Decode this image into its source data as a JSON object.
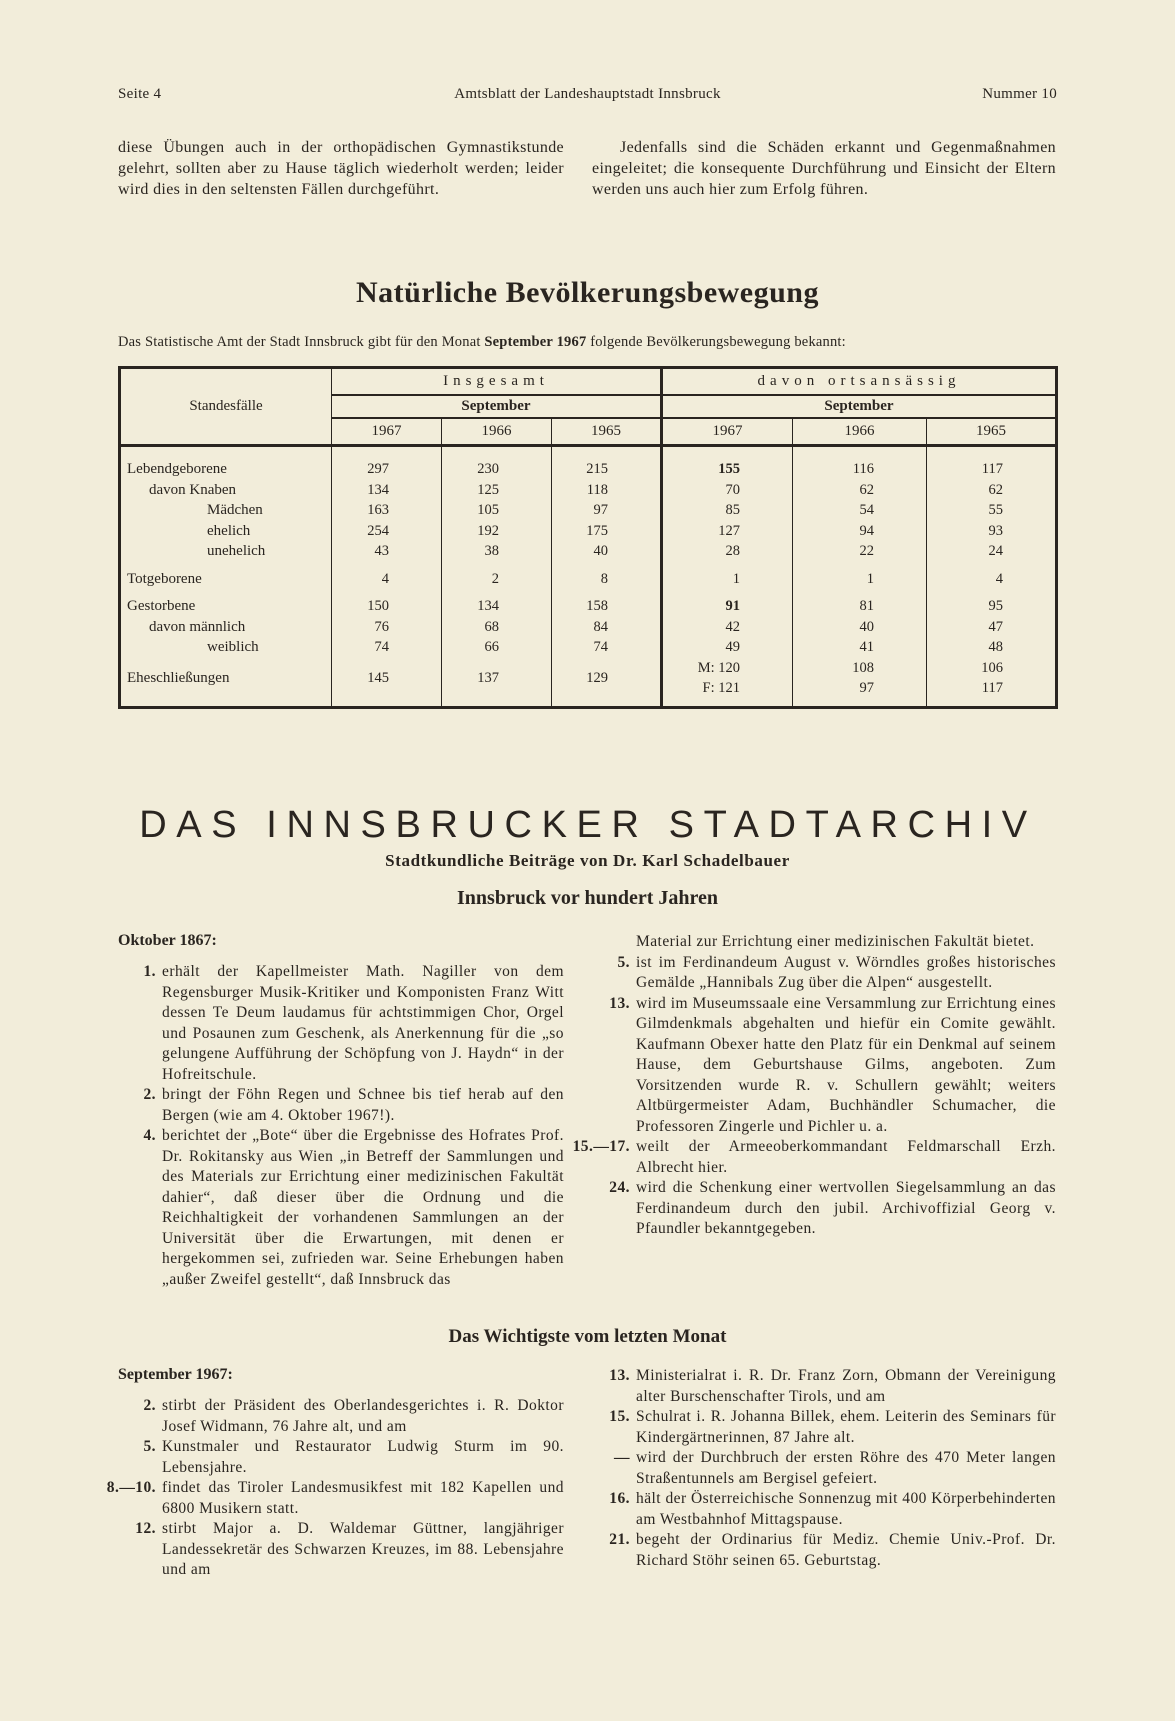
{
  "header": {
    "page": "Seite 4",
    "publication": "Amtsblatt der Landeshauptstadt Innsbruck",
    "issue": "Nummer 10"
  },
  "top": {
    "left": "diese Übungen auch in der orthopädischen Gymnastikstunde gelehrt, sollten aber zu Hause täglich wiederholt werden; leider wird dies in den seltensten Fällen durchgeführt.",
    "right": "Jedenfalls sind die Schäden erkannt und Gegenmaßnahmen eingeleitet; die konsequente Durchführung und Einsicht der Eltern werden uns auch hier zum Erfolg führen."
  },
  "stats": {
    "title": "Natürliche Bevölkerungsbewegung",
    "intro_pre": "Das Statistische Amt der Stadt Innsbruck gibt für den Monat ",
    "intro_month": "September 1967",
    "intro_post": " folgende Bevölkerungsbewegung bekannt:",
    "col_label": "Standesfälle",
    "group1": "Insgesamt",
    "group2": "davon ortsansässig",
    "month": "September",
    "years": [
      "1967",
      "1966",
      "1965",
      "1967",
      "1966",
      "1965"
    ],
    "rows": [
      {
        "label": "Lebendgeborene",
        "values": [
          "297",
          "230",
          "215",
          "155",
          "116",
          "117"
        ]
      },
      {
        "label": "davon Knaben",
        "values": [
          "134",
          "125",
          "118",
          "70",
          "62",
          "62"
        ]
      },
      {
        "label": "Mädchen",
        "values": [
          "163",
          "105",
          "97",
          "85",
          "54",
          "55"
        ]
      },
      {
        "label": "ehelich",
        "values": [
          "254",
          "192",
          "175",
          "127",
          "94",
          "93"
        ]
      },
      {
        "label": "unehelich",
        "values": [
          "43",
          "38",
          "40",
          "28",
          "22",
          "24"
        ]
      },
      {
        "label": "Totgeborene",
        "values": [
          "4",
          "2",
          "8",
          "1",
          "1",
          "4"
        ]
      },
      {
        "label": "Gestorbene",
        "values": [
          "150",
          "134",
          "158",
          "91",
          "81",
          "95"
        ]
      },
      {
        "label": "davon männlich",
        "values": [
          "76",
          "68",
          "84",
          "42",
          "40",
          "47"
        ]
      },
      {
        "label": "weiblich",
        "values": [
          "74",
          "66",
          "74",
          "49",
          "41",
          "48"
        ]
      }
    ],
    "marriages": {
      "label": "Eheschließungen",
      "values": [
        "145",
        "137",
        "129"
      ],
      "m": [
        "M: 120",
        "108",
        "106"
      ],
      "f": [
        "F: 121",
        "97",
        "117"
      ]
    }
  },
  "archive": {
    "title": "DAS INNSBRUCKER STADTARCHIV",
    "byline": "Stadtkundliche Beiträge von Dr. Karl Schadelbauer",
    "heading": "Innsbruck vor hundert Jahren",
    "month": "Oktober 1867:",
    "left_items": [
      {
        "n": "1.",
        "text": "erhält der Kapellmeister Math. Nagiller von dem Regensburger Musik-Kritiker und Komponisten Franz Witt dessen Te Deum laudamus für achtstimmigen Chor, Orgel und Posaunen zum Geschenk, als Anerkennung für die „so gelungene Aufführung der Schöpfung von J. Haydn“ in der Hofreitschule."
      },
      {
        "n": "2.",
        "text": "bringt der Föhn Regen und Schnee bis tief herab auf den Bergen (wie am 4. Oktober 1967!)."
      },
      {
        "n": "4.",
        "text": "berichtet der „Bote“ über die Ergebnisse des Hofrates Prof. Dr. Rokitansky aus Wien „in Betreff der Sammlungen und des Materials zur Errichtung einer medizinischen Fakultät dahier“, daß dieser über die Ordnung und die Reichhaltigkeit der vorhandenen Sammlungen an der Universität über die Erwartungen, mit denen er hergekommen sei, zufrieden war. Seine Erhebungen haben „außer Zweifel gestellt“, daß Innsbruck das"
      }
    ],
    "right_cont": "Material zur Errichtung einer medizinischen Fakultät bietet.",
    "right_items": [
      {
        "n": "5.",
        "text": "ist im Ferdinandeum August v. Wörndles großes historisches Gemälde „Hannibals Zug über die Alpen“ ausgestellt."
      },
      {
        "n": "13.",
        "text": "wird im Museumssaale eine Versammlung zur Errichtung eines Gilmdenkmals abgehalten und hiefür ein Comite gewählt. Kaufmann Obexer hatte den Platz für ein Denkmal auf seinem Hause, dem Geburtshause Gilms, angeboten. Zum Vorsitzenden wurde R. v. Schullern gewählt; weiters Altbürgermeister Adam, Buchhändler Schumacher, die Professoren Zingerle und Pichler u. a."
      },
      {
        "n": "15.—17.",
        "text": "weilt der Armeeoberkommandant Feldmarschall Erzh. Albrecht hier."
      },
      {
        "n": "24.",
        "text": "wird die Schenkung einer wertvollen Siegelsammlung an das Ferdinandeum durch den jubil. Archivoffizial Georg v. Pfaundler bekanntgegeben."
      }
    ]
  },
  "news": {
    "heading": "Das Wichtigste vom letzten Monat",
    "month": "September 1967:",
    "left_items": [
      {
        "n": "2.",
        "text": "stirbt der Präsident des Oberlandesgerichtes i. R. Doktor Josef Widmann, 76 Jahre alt, und am"
      },
      {
        "n": "5.",
        "text": "Kunstmaler und Restaurator Ludwig Sturm im 90. Lebensjahre."
      },
      {
        "n": "8.—10.",
        "text": "findet das Tiroler Landesmusikfest mit 182 Kapellen und 6800 Musikern statt."
      },
      {
        "n": "12.",
        "text": "stirbt Major a. D. Waldemar Güttner, langjähriger Landessekretär des Schwarzen Kreuzes, im 88. Lebensjahre und am"
      }
    ],
    "right_items": [
      {
        "n": "13.",
        "text": "Ministerialrat i. R. Dr. Franz Zorn, Obmann der Vereinigung alter Burschenschafter Tirols, und am"
      },
      {
        "n": "15.",
        "text": "Schulrat i. R. Johanna Billek, ehem. Leiterin des Seminars für Kindergärtnerinnen, 87 Jahre alt."
      },
      {
        "n": "—",
        "text": "wird der Durchbruch der ersten Röhre des 470 Meter langen Straßentunnels am Bergisel gefeiert."
      },
      {
        "n": "16.",
        "text": "hält der Österreichische Sonnenzug mit 400 Körperbehinderten am Westbahnhof Mittagspause."
      },
      {
        "n": "21.",
        "text": "begeht der Ordinarius für Mediz. Chemie Univ.-Prof. Dr. Richard Stöhr seinen 65. Geburtstag."
      }
    ]
  }
}
